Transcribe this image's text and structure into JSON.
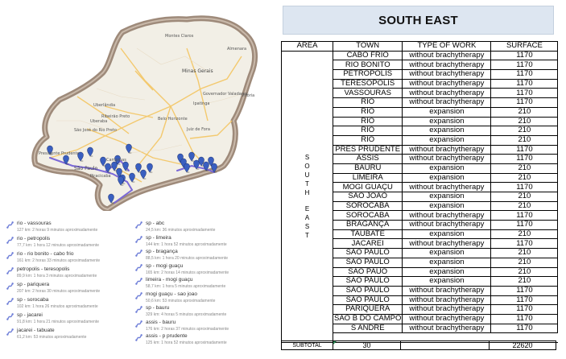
{
  "map": {
    "labels": [
      "São Paulo",
      "Minas Gerais",
      "Belo Horizonte",
      "Juiz de Fora",
      "Ribeirão Preto",
      "São José do Rio Preto",
      "Uberlândia",
      "Uberaba",
      "Presidente Prudente",
      "Piracicaba",
      "Campinas",
      "Governador Valadares",
      "Ipatinga",
      "Montes Claros",
      "Vitória",
      "Almenara"
    ],
    "colors": {
      "state_border": "#9e8a7a",
      "land": "#f2efe6",
      "road": "#f4c768",
      "route": "#7a68d8",
      "pin": "#3a5fc0"
    }
  },
  "routes": [
    {
      "name": "rio - vassouras",
      "meta": "127 km: 2 horas 9 minutos aproximadamente"
    },
    {
      "name": "rio - petropolis",
      "meta": "77,7 km: 1 hora 12 minutos aproximadamente"
    },
    {
      "name": "rio - rio bonito - cabo frio",
      "meta": "161 km: 2 horas 33 minutos aproximadamente"
    },
    {
      "name": "petropolis - teresopolis",
      "meta": "89,9 km: 1 hora 3 minutos aproximadamente"
    },
    {
      "name": "sp - pariquera",
      "meta": "207 km: 2 horas 30 minutos aproximadamente"
    },
    {
      "name": "sp - sorocaba",
      "meta": "102 km: 1 hora 26 minutos aproximadamente"
    },
    {
      "name": "sp - jacarei",
      "meta": "91,8 km: 1 hora 21 minutos aproximadamente"
    },
    {
      "name": "jacarei - tabuate",
      "meta": "61,2 km: 53 minutos aproximadamente"
    },
    {
      "name": "sp - abc",
      "meta": "24,5 km: 36 minutos aproximadamente"
    },
    {
      "name": "sp - limeira",
      "meta": "144 km: 1 hora 52 minutos aproximadamente"
    },
    {
      "name": "sp - bragança",
      "meta": "88,5 km: 1 hora 20 minutos aproximadamente"
    },
    {
      "name": "sp - mogi guaçu",
      "meta": "165 km: 2 horas 14 minutos aproximadamente"
    },
    {
      "name": "limeira - mogi guaçu",
      "meta": "58,7 km: 1 hora 5 minutos aproximadamente"
    },
    {
      "name": "mogi guaçu - sao joao",
      "meta": "50,6 km: 53 minutos aproximadamente"
    },
    {
      "name": "sp - bauru",
      "meta": "329 km: 4 horas 5 minutos aproximadamente"
    },
    {
      "name": "assis - bauru",
      "meta": "176 km: 2 horas 37 minutos aproximadamente"
    },
    {
      "name": "assis - p prudente",
      "meta": "125 km: 1 hora 52 minutos aproximadamente"
    }
  ],
  "title": "SOUTH EAST",
  "table": {
    "headers": {
      "area": "AREA",
      "town": "TOWN",
      "work": "TYPE OF WORK",
      "surface": "SURFACE"
    },
    "area_label": [
      "S",
      "O",
      "U",
      "T",
      "H",
      "E",
      "A",
      "S",
      "T"
    ],
    "rows": [
      {
        "town": "CABO FRIO",
        "work": "without brachytherapy",
        "surface": "1170"
      },
      {
        "town": "RIO BONITO",
        "work": "without brachytherapy",
        "surface": "1170"
      },
      {
        "town": "PETROPOLIS",
        "work": "without brachytherapy",
        "surface": "1170"
      },
      {
        "town": "TERESOPOLIS",
        "work": "without brachytherapy",
        "surface": "1170"
      },
      {
        "town": "VASSOURAS",
        "work": "without brachytherapy",
        "surface": "1170"
      },
      {
        "town": "RIO",
        "work": "without brachytherapy",
        "surface": "1170"
      },
      {
        "town": "RIO",
        "work": "expansion",
        "surface": "210"
      },
      {
        "town": "RIO",
        "work": "expansion",
        "surface": "210"
      },
      {
        "town": "RIO",
        "work": "expansion",
        "surface": "210"
      },
      {
        "town": "RIO",
        "work": "expansion",
        "surface": "210"
      },
      {
        "town": "PRES PRUDENTE",
        "work": "without brachytherapy",
        "surface": "1170"
      },
      {
        "town": "ASSIS",
        "work": "without brachytherapy",
        "surface": "1170"
      },
      {
        "town": "BAURU",
        "work": "expansion",
        "surface": "210"
      },
      {
        "town": "LIMEIRA",
        "work": "expansion",
        "surface": "210"
      },
      {
        "town": "MOGI GUAÇU",
        "work": "without brachytherapy",
        "surface": "1170"
      },
      {
        "town": "SAO JOAO",
        "work": "expansion",
        "surface": "210"
      },
      {
        "town": "SOROCABA",
        "work": "expansion",
        "surface": "210"
      },
      {
        "town": "SOROCABA",
        "work": "without brachytherapy",
        "surface": "1170"
      },
      {
        "town": "BRAGANÇA",
        "work": "without brachytherapy",
        "surface": "1170"
      },
      {
        "town": "TAUBATE",
        "work": "expansion",
        "surface": "210"
      },
      {
        "town": "JACAREI",
        "work": "without brachytherapy",
        "surface": "1170"
      },
      {
        "town": "SAO PAULO",
        "work": "expansion",
        "surface": "210"
      },
      {
        "town": "SAO PAULO",
        "work": "expansion",
        "surface": "210"
      },
      {
        "town": "SAO PAUO",
        "work": "expansion",
        "surface": "210"
      },
      {
        "town": "SAO PAULO",
        "work": "expansion",
        "surface": "210"
      },
      {
        "town": "SAO PAULO",
        "work": "without brachytherapy",
        "surface": "1170"
      },
      {
        "town": "SAO PAULO",
        "work": "without brachytherapy",
        "surface": "1170"
      },
      {
        "town": "PARIQUERA",
        "work": "without brachytherapy",
        "surface": "1170"
      },
      {
        "town": "SAO B DO CAMPO",
        "work": "without brachytherapy",
        "surface": "1170"
      },
      {
        "town": "S ANDRE",
        "work": "without brachytherapy",
        "surface": "1170"
      }
    ]
  },
  "subtotal": {
    "label": "SUBTOTAL",
    "count": "30",
    "surface": "22620"
  }
}
